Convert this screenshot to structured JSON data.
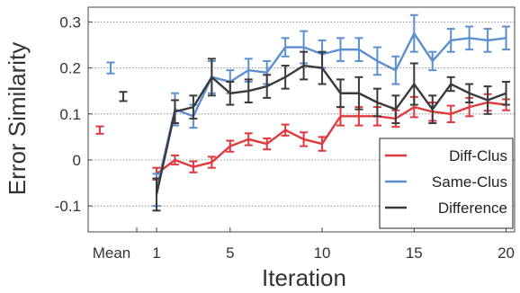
{
  "chart_data": {
    "type": "line",
    "title": "",
    "xlabel": "Iteration",
    "ylabel": "Error Similarity",
    "ylim": [
      -0.15,
      0.33
    ],
    "yticks": [
      -0.1,
      0,
      0.1,
      0.2,
      0.3
    ],
    "ytick_labels": [
      "-0.1",
      "0",
      "0.1",
      "0.2",
      "0.3"
    ],
    "xticks": [
      1,
      5,
      10,
      15,
      20
    ],
    "xtick_labels": [
      "1",
      "5",
      "10",
      "15",
      "20"
    ],
    "mean_label": "Mean",
    "grid": "horizontal dotted",
    "legend_position": "bottom-right",
    "x": [
      1,
      2,
      3,
      4,
      5,
      6,
      7,
      8,
      9,
      10,
      11,
      12,
      13,
      14,
      15,
      16,
      17,
      18,
      19,
      20
    ],
    "series": [
      {
        "name": "Diff-Clus",
        "color": "#e0393e",
        "mean": 0.065,
        "mean_err": 0.008,
        "values": [
          -0.03,
          0.0,
          -0.015,
          -0.005,
          0.03,
          0.045,
          0.035,
          0.065,
          0.045,
          0.035,
          0.095,
          0.095,
          0.095,
          0.09,
          0.115,
          0.105,
          0.1,
          0.115,
          0.125,
          0.12
        ],
        "errors": [
          0.013,
          0.01,
          0.012,
          0.012,
          0.012,
          0.013,
          0.012,
          0.012,
          0.015,
          0.015,
          0.02,
          0.02,
          0.02,
          0.018,
          0.022,
          0.02,
          0.018,
          0.02,
          0.018,
          0.012
        ]
      },
      {
        "name": "Same-Clus",
        "color": "#5b8fd0",
        "mean": 0.2,
        "mean_err": 0.012,
        "values": [
          -0.065,
          0.11,
          0.095,
          0.18,
          0.17,
          0.195,
          0.19,
          0.245,
          0.245,
          0.23,
          0.24,
          0.24,
          0.215,
          0.195,
          0.275,
          0.215,
          0.26,
          0.265,
          0.26,
          0.265
        ],
        "errors": [
          0.035,
          0.035,
          0.025,
          0.035,
          0.025,
          0.025,
          0.025,
          0.02,
          0.035,
          0.03,
          0.025,
          0.025,
          0.03,
          0.03,
          0.04,
          0.02,
          0.025,
          0.025,
          0.025,
          0.025
        ]
      },
      {
        "name": "Difference",
        "color": "#3a3a3a",
        "mean": 0.138,
        "mean_err": 0.01,
        "values": [
          -0.075,
          0.105,
          0.115,
          0.18,
          0.145,
          0.15,
          0.16,
          0.18,
          0.205,
          0.2,
          0.145,
          0.145,
          0.125,
          0.11,
          0.165,
          0.11,
          0.165,
          0.145,
          0.13,
          0.145
        ],
        "errors": [
          0.035,
          0.025,
          0.025,
          0.04,
          0.025,
          0.025,
          0.025,
          0.025,
          0.03,
          0.035,
          0.03,
          0.035,
          0.03,
          0.03,
          0.045,
          0.03,
          0.015,
          0.02,
          0.03,
          0.025
        ]
      }
    ]
  }
}
